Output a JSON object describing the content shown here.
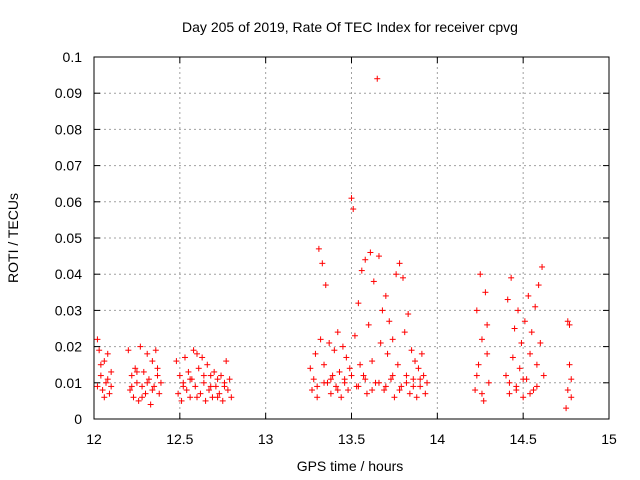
{
  "chart_data": {
    "type": "scatter",
    "title": "Day 205 of 2019, Rate Of TEC Index for receiver cpvg",
    "xlabel": "GPS time / hours",
    "ylabel": "ROTI / TECUs",
    "xlim": [
      12,
      15
    ],
    "ylim": [
      0,
      0.1
    ],
    "x_ticks": [
      "12",
      "12.5",
      "13",
      "13.5",
      "14",
      "14.5",
      "15"
    ],
    "y_ticks": [
      "0",
      "0.01",
      "0.02",
      "0.03",
      "0.04",
      "0.05",
      "0.06",
      "0.07",
      "0.08",
      "0.09",
      "0.1"
    ],
    "grid": true,
    "marker": "+",
    "color": "#ff0000",
    "series": [
      {
        "name": "ROTI",
        "points": [
          [
            12.02,
            0.022
          ],
          [
            12.03,
            0.019
          ],
          [
            12.04,
            0.012
          ],
          [
            12.05,
            0.008
          ],
          [
            12.06,
            0.016
          ],
          [
            12.07,
            0.01
          ],
          [
            12.08,
            0.018
          ],
          [
            12.09,
            0.007
          ],
          [
            12.1,
            0.013
          ],
          [
            12.02,
            0.009
          ],
          [
            12.04,
            0.015
          ],
          [
            12.06,
            0.006
          ],
          [
            12.08,
            0.011
          ],
          [
            12.1,
            0.009
          ],
          [
            12.2,
            0.019
          ],
          [
            12.21,
            0.008
          ],
          [
            12.22,
            0.012
          ],
          [
            12.23,
            0.006
          ],
          [
            12.24,
            0.014
          ],
          [
            12.25,
            0.01
          ],
          [
            12.26,
            0.005
          ],
          [
            12.27,
            0.02
          ],
          [
            12.28,
            0.009
          ],
          [
            12.29,
            0.013
          ],
          [
            12.3,
            0.007
          ],
          [
            12.31,
            0.018
          ],
          [
            12.32,
            0.011
          ],
          [
            12.33,
            0.004
          ],
          [
            12.34,
            0.016
          ],
          [
            12.35,
            0.009
          ],
          [
            12.36,
            0.019
          ],
          [
            12.37,
            0.012
          ],
          [
            12.38,
            0.007
          ],
          [
            12.39,
            0.01
          ],
          [
            12.22,
            0.009
          ],
          [
            12.25,
            0.013
          ],
          [
            12.28,
            0.006
          ],
          [
            12.31,
            0.01
          ],
          [
            12.34,
            0.008
          ],
          [
            12.37,
            0.014
          ],
          [
            12.48,
            0.016
          ],
          [
            12.49,
            0.007
          ],
          [
            12.5,
            0.012
          ],
          [
            12.51,
            0.005
          ],
          [
            12.52,
            0.01
          ],
          [
            12.53,
            0.017
          ],
          [
            12.54,
            0.008
          ],
          [
            12.55,
            0.013
          ],
          [
            12.56,
            0.006
          ],
          [
            12.57,
            0.011
          ],
          [
            12.58,
            0.019
          ],
          [
            12.59,
            0.009
          ],
          [
            12.6,
            0.018
          ],
          [
            12.61,
            0.014
          ],
          [
            12.62,
            0.007
          ],
          [
            12.63,
            0.017
          ],
          [
            12.64,
            0.01
          ],
          [
            12.65,
            0.005
          ],
          [
            12.66,
            0.015
          ],
          [
            12.67,
            0.008
          ],
          [
            12.68,
            0.012
          ],
          [
            12.69,
            0.006
          ],
          [
            12.7,
            0.013
          ],
          [
            12.71,
            0.009
          ],
          [
            12.72,
            0.011
          ],
          [
            12.73,
            0.007
          ],
          [
            12.74,
            0.012
          ],
          [
            12.75,
            0.005
          ],
          [
            12.76,
            0.009
          ],
          [
            12.77,
            0.016
          ],
          [
            12.78,
            0.008
          ],
          [
            12.79,
            0.011
          ],
          [
            12.8,
            0.006
          ],
          [
            12.52,
            0.009
          ],
          [
            12.56,
            0.011
          ],
          [
            12.6,
            0.006
          ],
          [
            12.64,
            0.012
          ],
          [
            12.68,
            0.009
          ],
          [
            12.72,
            0.006
          ],
          [
            12.76,
            0.01
          ],
          [
            13.26,
            0.014
          ],
          [
            13.27,
            0.008
          ],
          [
            13.28,
            0.011
          ],
          [
            13.29,
            0.018
          ],
          [
            13.3,
            0.006
          ],
          [
            13.31,
            0.047
          ],
          [
            13.32,
            0.022
          ],
          [
            13.33,
            0.043
          ],
          [
            13.34,
            0.015
          ],
          [
            13.35,
            0.037
          ],
          [
            13.36,
            0.01
          ],
          [
            13.37,
            0.021
          ],
          [
            13.38,
            0.007
          ],
          [
            13.39,
            0.012
          ],
          [
            13.4,
            0.019
          ],
          [
            13.41,
            0.009
          ],
          [
            13.42,
            0.024
          ],
          [
            13.43,
            0.013
          ],
          [
            13.44,
            0.006
          ],
          [
            13.45,
            0.02
          ],
          [
            13.46,
            0.011
          ],
          [
            13.47,
            0.017
          ],
          [
            13.48,
            0.008
          ],
          [
            13.49,
            0.014
          ],
          [
            13.5,
            0.061
          ],
          [
            13.51,
            0.058
          ],
          [
            13.52,
            0.023
          ],
          [
            13.53,
            0.009
          ],
          [
            13.54,
            0.032
          ],
          [
            13.55,
            0.015
          ],
          [
            13.56,
            0.041
          ],
          [
            13.57,
            0.012
          ],
          [
            13.58,
            0.044
          ],
          [
            13.59,
            0.007
          ],
          [
            13.6,
            0.026
          ],
          [
            13.61,
            0.046
          ],
          [
            13.62,
            0.016
          ],
          [
            13.63,
            0.038
          ],
          [
            13.64,
            0.01
          ],
          [
            13.65,
            0.094
          ],
          [
            13.66,
            0.045
          ],
          [
            13.67,
            0.021
          ],
          [
            13.68,
            0.03
          ],
          [
            13.69,
            0.008
          ],
          [
            13.7,
            0.034
          ],
          [
            13.71,
            0.018
          ],
          [
            13.72,
            0.027
          ],
          [
            13.73,
            0.011
          ],
          [
            13.74,
            0.022
          ],
          [
            13.75,
            0.006
          ],
          [
            13.76,
            0.04
          ],
          [
            13.77,
            0.015
          ],
          [
            13.78,
            0.043
          ],
          [
            13.79,
            0.009
          ],
          [
            13.8,
            0.039
          ],
          [
            13.81,
            0.024
          ],
          [
            13.82,
            0.012
          ],
          [
            13.83,
            0.029
          ],
          [
            13.84,
            0.007
          ],
          [
            13.85,
            0.019
          ],
          [
            13.86,
            0.011
          ],
          [
            13.87,
            0.016
          ],
          [
            13.88,
            0.006
          ],
          [
            13.89,
            0.014
          ],
          [
            13.9,
            0.009
          ],
          [
            13.91,
            0.018
          ],
          [
            13.92,
            0.012
          ],
          [
            13.93,
            0.007
          ],
          [
            13.94,
            0.01
          ],
          [
            13.3,
            0.009
          ],
          [
            13.34,
            0.01
          ],
          [
            13.38,
            0.011
          ],
          [
            13.42,
            0.008
          ],
          [
            13.46,
            0.01
          ],
          [
            13.5,
            0.012
          ],
          [
            13.54,
            0.009
          ],
          [
            13.58,
            0.011
          ],
          [
            13.62,
            0.008
          ],
          [
            13.66,
            0.01
          ],
          [
            13.7,
            0.009
          ],
          [
            13.74,
            0.012
          ],
          [
            13.78,
            0.008
          ],
          [
            13.82,
            0.01
          ],
          [
            13.86,
            0.009
          ],
          [
            13.9,
            0.011
          ],
          [
            14.22,
            0.008
          ],
          [
            14.23,
            0.03
          ],
          [
            14.24,
            0.015
          ],
          [
            14.25,
            0.04
          ],
          [
            14.26,
            0.022
          ],
          [
            14.27,
            0.005
          ],
          [
            14.28,
            0.035
          ],
          [
            14.29,
            0.018
          ],
          [
            14.3,
            0.01
          ],
          [
            14.23,
            0.012
          ],
          [
            14.26,
            0.007
          ],
          [
            14.29,
            0.026
          ],
          [
            14.4,
            0.012
          ],
          [
            14.41,
            0.033
          ],
          [
            14.42,
            0.007
          ],
          [
            14.43,
            0.039
          ],
          [
            14.44,
            0.017
          ],
          [
            14.45,
            0.025
          ],
          [
            14.46,
            0.009
          ],
          [
            14.47,
            0.03
          ],
          [
            14.48,
            0.014
          ],
          [
            14.49,
            0.021
          ],
          [
            14.5,
            0.006
          ],
          [
            14.51,
            0.027
          ],
          [
            14.52,
            0.011
          ],
          [
            14.53,
            0.034
          ],
          [
            14.54,
            0.018
          ],
          [
            14.55,
            0.024
          ],
          [
            14.56,
            0.008
          ],
          [
            14.57,
            0.031
          ],
          [
            14.58,
            0.015
          ],
          [
            14.59,
            0.037
          ],
          [
            14.6,
            0.021
          ],
          [
            14.61,
            0.042
          ],
          [
            14.62,
            0.012
          ],
          [
            14.42,
            0.01
          ],
          [
            14.46,
            0.008
          ],
          [
            14.5,
            0.011
          ],
          [
            14.54,
            0.007
          ],
          [
            14.58,
            0.009
          ],
          [
            14.75,
            0.003
          ],
          [
            14.76,
            0.008
          ],
          [
            14.77,
            0.015
          ],
          [
            14.78,
            0.011
          ],
          [
            14.77,
            0.026
          ],
          [
            14.76,
            0.027
          ],
          [
            14.78,
            0.006
          ]
        ]
      }
    ]
  }
}
